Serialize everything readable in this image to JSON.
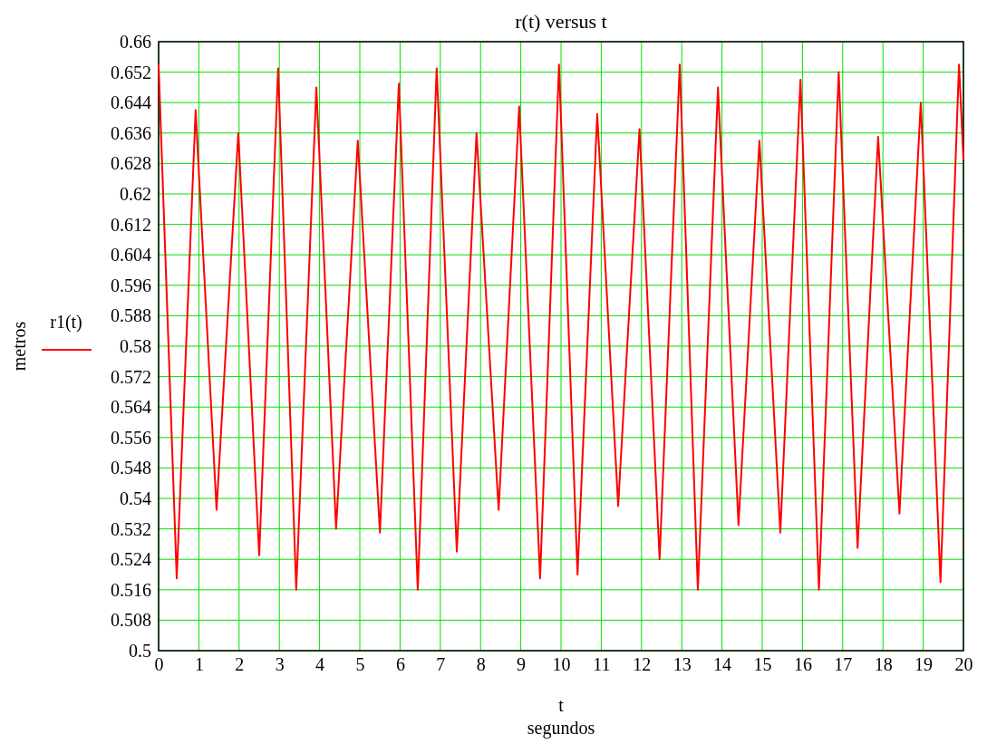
{
  "chart_data": {
    "type": "line",
    "title": "r(t) versus t",
    "xlabel": "t",
    "ylabel": "metros",
    "annotations": [
      "segundos"
    ],
    "xlim": [
      0,
      20
    ],
    "xticks": [
      0,
      1,
      2,
      3,
      4,
      5,
      6,
      7,
      8,
      9,
      10,
      11,
      12,
      13,
      14,
      15,
      16,
      17,
      18,
      19,
      20
    ],
    "ylim": [
      0.5,
      0.66
    ],
    "yticks": [
      0.5,
      0.508,
      0.516,
      0.524,
      0.532,
      0.54,
      0.548,
      0.556,
      0.564,
      0.572,
      0.58,
      0.588,
      0.596,
      0.604,
      0.612,
      0.62,
      0.628,
      0.636,
      0.644,
      0.652,
      0.66
    ],
    "grid": true,
    "legend": "left",
    "line_style": "solid",
    "marker": "none",
    "series": [
      {
        "name": "r1(t)",
        "color": "#ff0000",
        "x": [
          0,
          0.45,
          0.92,
          1.44,
          1.98,
          2.5,
          2.97,
          3.42,
          3.92,
          4.41,
          4.95,
          5.5,
          5.97,
          6.44,
          6.91,
          7.41,
          7.9,
          8.45,
          8.96,
          9.48,
          9.95,
          10.41,
          10.9,
          11.42,
          11.95,
          12.45,
          12.95,
          13.4,
          13.9,
          14.41,
          14.93,
          15.45,
          15.95,
          16.41,
          16.9,
          17.37,
          17.88,
          18.41,
          18.94,
          19.43,
          19.89,
          20
        ],
        "values": [
          0.654,
          0.519,
          0.642,
          0.537,
          0.636,
          0.525,
          0.653,
          0.516,
          0.648,
          0.532,
          0.634,
          0.531,
          0.649,
          0.516,
          0.653,
          0.526,
          0.636,
          0.537,
          0.643,
          0.519,
          0.654,
          0.52,
          0.641,
          0.538,
          0.637,
          0.524,
          0.654,
          0.516,
          0.648,
          0.533,
          0.634,
          0.531,
          0.65,
          0.516,
          0.652,
          0.527,
          0.635,
          0.536,
          0.644,
          0.518,
          0.654,
          0.629
        ]
      }
    ]
  }
}
